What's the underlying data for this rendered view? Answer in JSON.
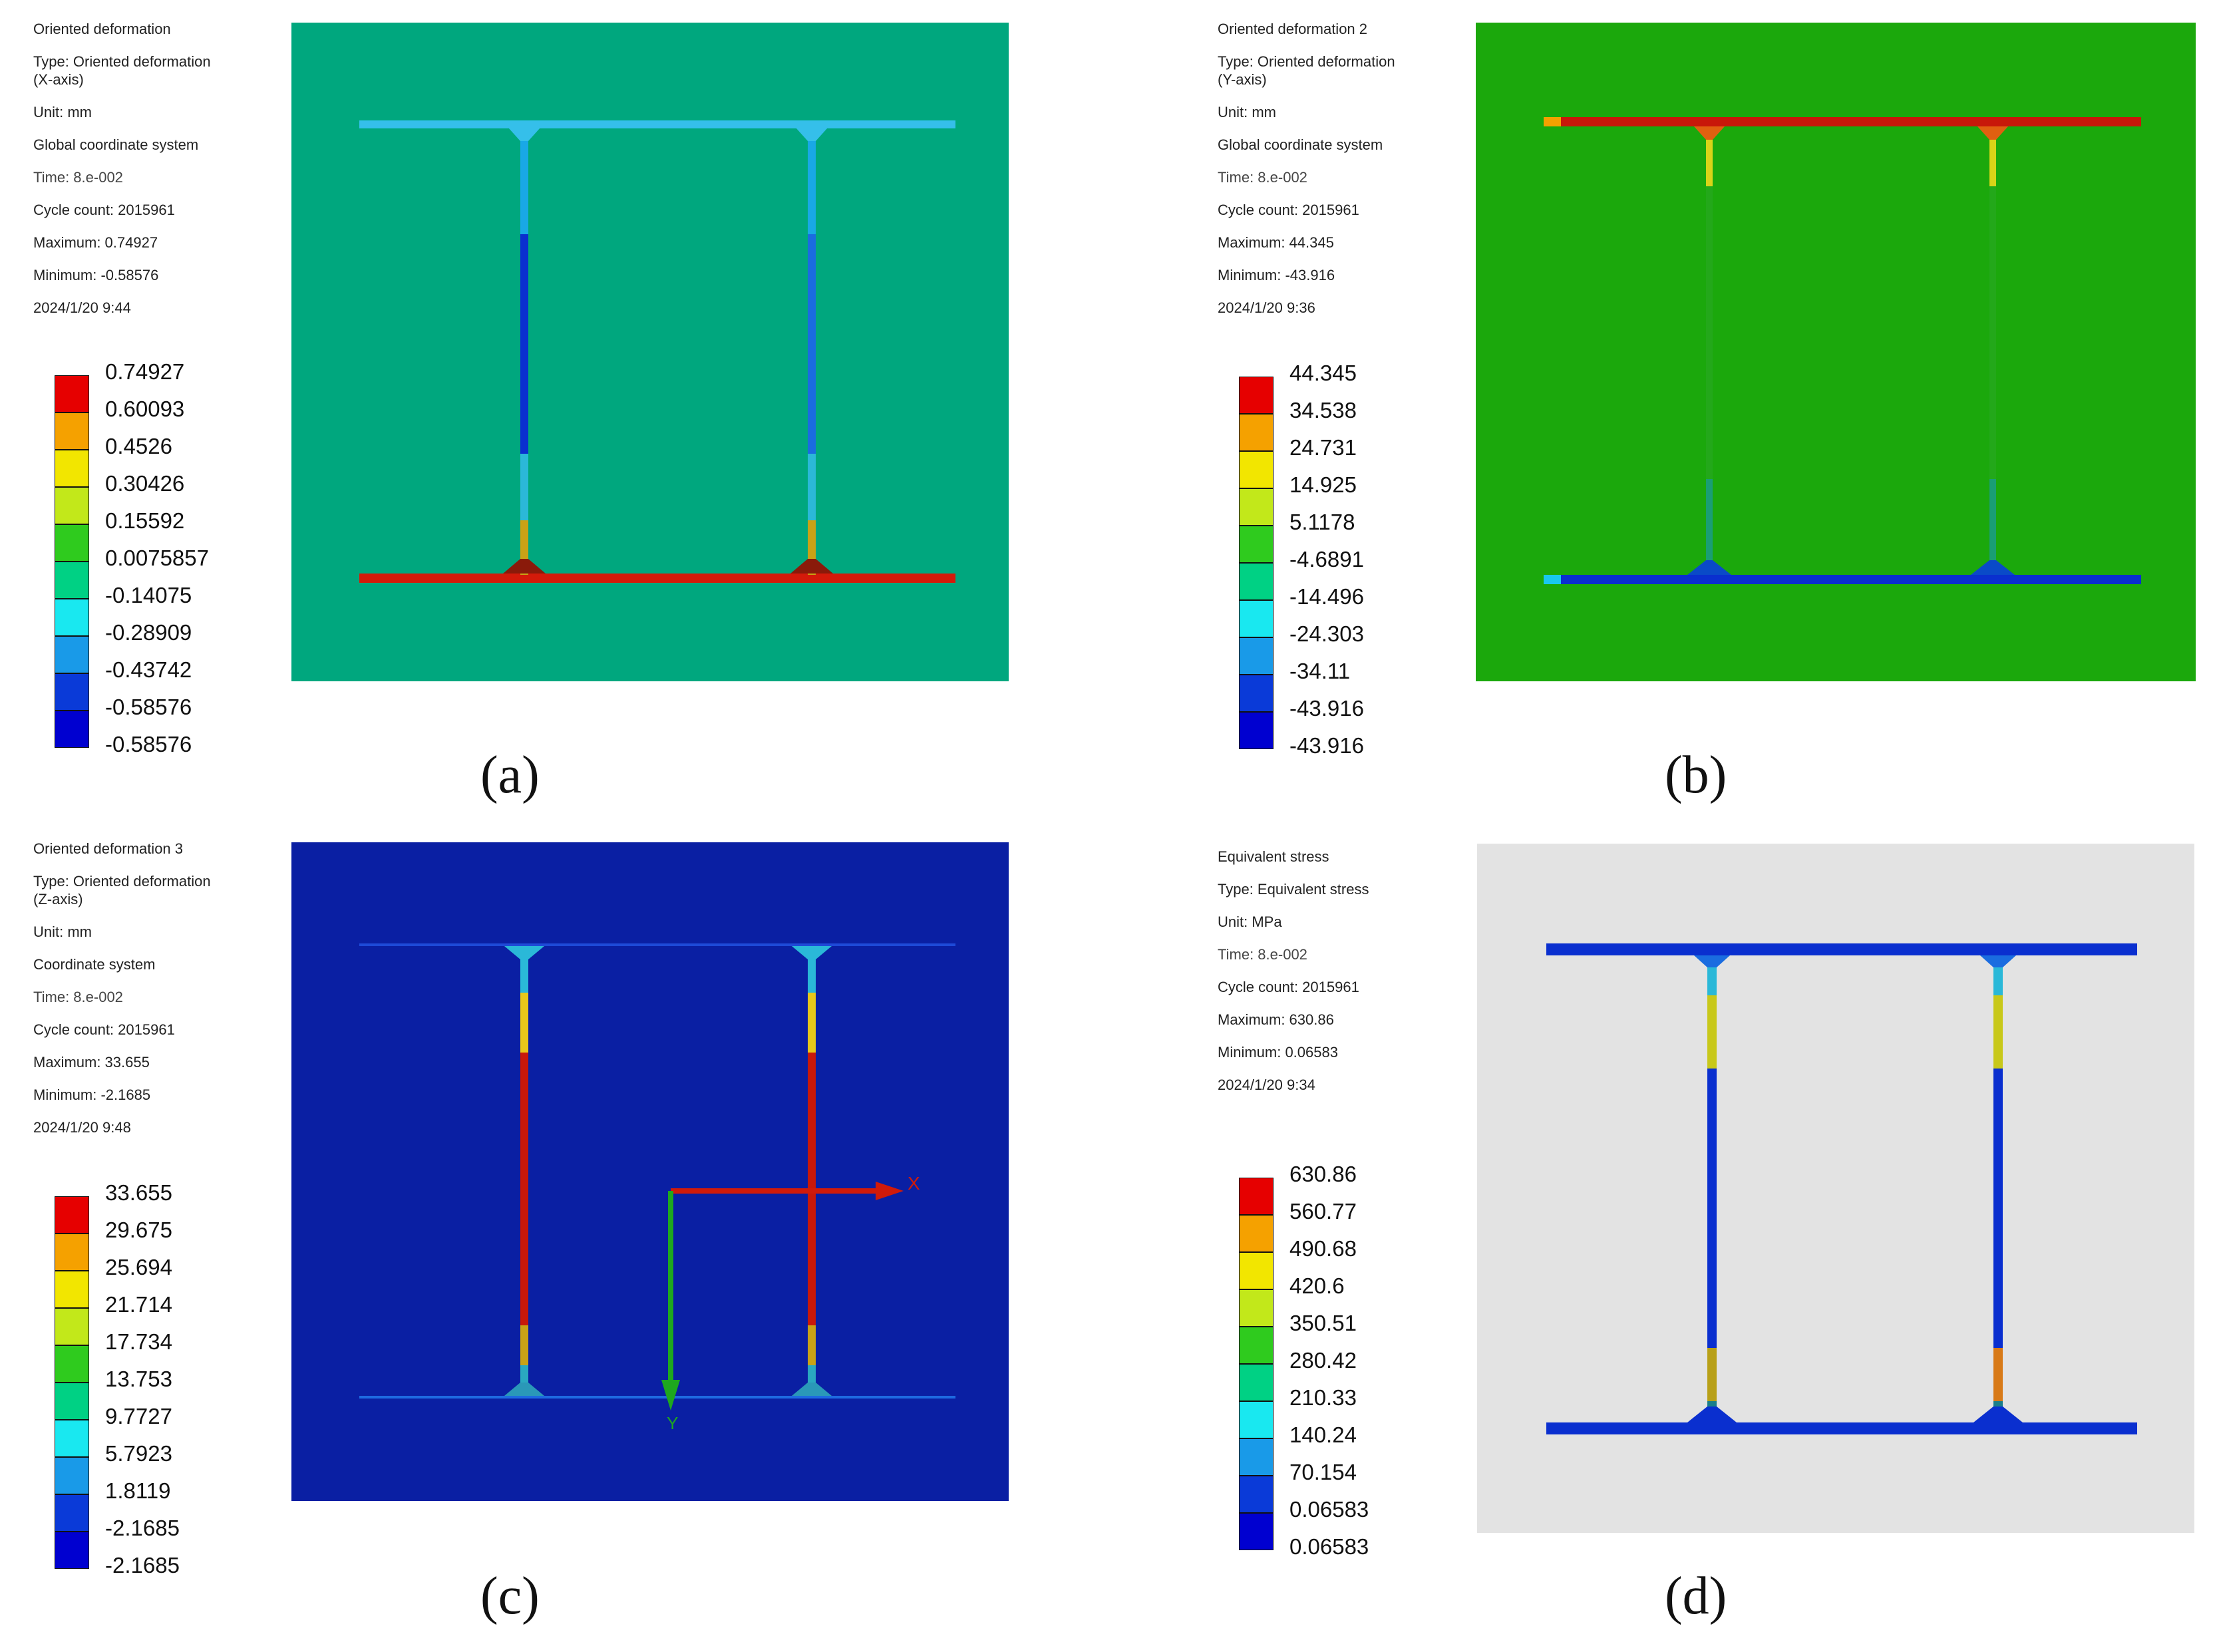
{
  "panels": [
    {
      "caption": "(a)",
      "info": {
        "title": "Oriented deformation",
        "type": "Type: Oriented deformation (X-axis)",
        "unit": "Unit: mm",
        "coord": "Global coordinate system",
        "time": "Time: 8.e-002",
        "cycle": "Cycle count: 2015961",
        "max": "Maximum: 0.74927",
        "min": "Minimum: -0.58576",
        "date": "2024/1/20 9:44"
      },
      "legend": [
        "0.74927",
        "0.60093",
        "0.4526",
        "0.30426",
        "0.15592",
        "0.0075857",
        "-0.14075",
        "-0.28909",
        "-0.43742",
        "-0.58576"
      ],
      "background": "#00A77E"
    },
    {
      "caption": "(b)",
      "info": {
        "title": "Oriented deformation 2",
        "type": "Type: Oriented deformation (Y-axis)",
        "unit": "Unit: mm",
        "coord": "Global coordinate system",
        "time": "Time: 8.e-002",
        "cycle": "Cycle count: 2015961",
        "max": "Maximum: 44.345",
        "min": "Minimum: -43.916",
        "date": "2024/1/20 9:36"
      },
      "legend": [
        "44.345",
        "34.538",
        "24.731",
        "14.925",
        "5.1178",
        "-4.6891",
        "-14.496",
        "-24.303",
        "-34.11",
        "-43.916"
      ],
      "background": "#1BA80C"
    },
    {
      "caption": "(c)",
      "info": {
        "title": "Oriented deformation 3",
        "type": "Type: Oriented deformation (Z-axis)",
        "unit": "Unit: mm",
        "coord": "Coordinate system",
        "time": "Time: 8.e-002",
        "cycle": "Cycle count: 2015961",
        "max": "Maximum: 33.655",
        "min": "Minimum: -2.1685",
        "date": "2024/1/20 9:48"
      },
      "legend": [
        "33.655",
        "29.675",
        "25.694",
        "21.714",
        "17.734",
        "13.753",
        "9.7727",
        "5.7923",
        "1.8119",
        "-2.1685"
      ],
      "background": "#0A1FA3",
      "axis_labels": {
        "x": "X",
        "y": "Y"
      }
    },
    {
      "caption": "(d)",
      "info": {
        "title": "Equivalent stress",
        "type": "Type: Equivalent stress",
        "unit": "Unit: MPa",
        "time": "Time: 8.e-002",
        "cycle": "Cycle count: 2015961",
        "max": "Maximum: 630.86",
        "min": "Minimum: 0.06583",
        "date": "2024/1/20 9:34"
      },
      "legend": [
        "630.86",
        "560.77",
        "490.68",
        "420.6",
        "350.51",
        "280.42",
        "210.33",
        "140.24",
        "70.154",
        "0.06583"
      ],
      "background": "#E3E3E3"
    }
  ],
  "colorbar_colors": [
    "#E60000",
    "#F5A100",
    "#F2E600",
    "#C2E81A",
    "#2FCB1E",
    "#00D184",
    "#19E8F0",
    "#199AE8",
    "#0A3AD8",
    "#0000D0"
  ]
}
